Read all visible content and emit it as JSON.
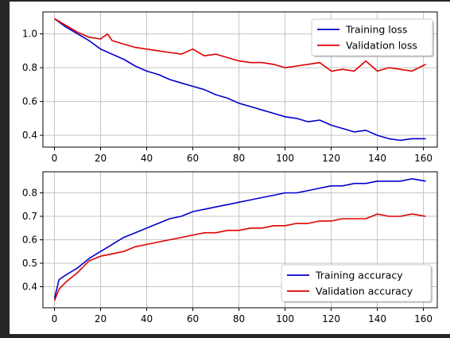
{
  "colors": {
    "blue": "#0000cc",
    "red": "#e00000",
    "grid": "#c4c4c4"
  },
  "chart_data": [
    {
      "type": "line",
      "grid": true,
      "legend_position": "top-right",
      "xlim": [
        -5,
        166
      ],
      "ylim": [
        0.33,
        1.13
      ],
      "xticks": [
        0,
        20,
        40,
        60,
        80,
        100,
        120,
        140,
        160
      ],
      "yticks": [
        0.4,
        0.6,
        0.8,
        1.0
      ],
      "ytick_labels": [
        "0.4",
        "0.6",
        "0.8",
        "1.0"
      ],
      "series": [
        {
          "name": "Training loss",
          "color": "#0000cc",
          "x": [
            0,
            5,
            10,
            15,
            20,
            25,
            30,
            35,
            40,
            45,
            50,
            55,
            60,
            65,
            70,
            75,
            80,
            85,
            90,
            95,
            100,
            105,
            110,
            115,
            120,
            125,
            130,
            135,
            140,
            145,
            150,
            155,
            161
          ],
          "y": [
            1.09,
            1.04,
            1.0,
            0.96,
            0.91,
            0.88,
            0.85,
            0.81,
            0.78,
            0.76,
            0.73,
            0.71,
            0.69,
            0.67,
            0.64,
            0.62,
            0.59,
            0.57,
            0.55,
            0.53,
            0.51,
            0.5,
            0.48,
            0.49,
            0.46,
            0.44,
            0.42,
            0.43,
            0.4,
            0.38,
            0.37,
            0.38,
            0.38
          ]
        },
        {
          "name": "Validation loss",
          "color": "#e00000",
          "x": [
            0,
            5,
            10,
            15,
            20,
            23,
            25,
            30,
            35,
            40,
            45,
            50,
            55,
            60,
            65,
            70,
            75,
            80,
            85,
            90,
            95,
            100,
            105,
            110,
            115,
            120,
            125,
            130,
            135,
            140,
            145,
            150,
            155,
            161
          ],
          "y": [
            1.09,
            1.05,
            1.01,
            0.98,
            0.97,
            1.0,
            0.96,
            0.94,
            0.92,
            0.91,
            0.9,
            0.89,
            0.88,
            0.91,
            0.87,
            0.88,
            0.86,
            0.84,
            0.83,
            0.83,
            0.82,
            0.8,
            0.81,
            0.82,
            0.83,
            0.78,
            0.79,
            0.78,
            0.84,
            0.78,
            0.8,
            0.79,
            0.78,
            0.82
          ]
        }
      ]
    },
    {
      "type": "line",
      "grid": true,
      "legend_position": "bottom-right",
      "xlim": [
        -5,
        166
      ],
      "ylim": [
        0.31,
        0.89
      ],
      "xticks": [
        0,
        20,
        40,
        60,
        80,
        100,
        120,
        140,
        160
      ],
      "yticks": [
        0.4,
        0.5,
        0.6,
        0.7,
        0.8
      ],
      "ytick_labels": [
        "0.4",
        "0.5",
        "0.6",
        "0.7",
        "0.8"
      ],
      "series": [
        {
          "name": "Training accuracy",
          "color": "#0000cc",
          "x": [
            0,
            2,
            5,
            10,
            15,
            20,
            25,
            30,
            35,
            40,
            45,
            50,
            55,
            60,
            65,
            70,
            75,
            80,
            85,
            90,
            95,
            100,
            105,
            110,
            115,
            120,
            125,
            130,
            135,
            140,
            145,
            150,
            155,
            161
          ],
          "y": [
            0.35,
            0.43,
            0.45,
            0.48,
            0.52,
            0.55,
            0.58,
            0.61,
            0.63,
            0.65,
            0.67,
            0.69,
            0.7,
            0.72,
            0.73,
            0.74,
            0.75,
            0.76,
            0.77,
            0.78,
            0.79,
            0.8,
            0.8,
            0.81,
            0.82,
            0.83,
            0.83,
            0.84,
            0.84,
            0.85,
            0.85,
            0.85,
            0.86,
            0.85
          ]
        },
        {
          "name": "Validation accuracy",
          "color": "#e00000",
          "x": [
            0,
            2,
            5,
            10,
            15,
            20,
            25,
            30,
            35,
            40,
            45,
            50,
            55,
            60,
            65,
            70,
            75,
            80,
            85,
            90,
            95,
            100,
            105,
            110,
            115,
            120,
            125,
            130,
            135,
            140,
            145,
            150,
            155,
            161
          ],
          "y": [
            0.34,
            0.39,
            0.42,
            0.46,
            0.51,
            0.53,
            0.54,
            0.55,
            0.57,
            0.58,
            0.59,
            0.6,
            0.61,
            0.62,
            0.63,
            0.63,
            0.64,
            0.64,
            0.65,
            0.65,
            0.66,
            0.66,
            0.67,
            0.67,
            0.68,
            0.68,
            0.69,
            0.69,
            0.69,
            0.71,
            0.7,
            0.7,
            0.71,
            0.7
          ]
        }
      ]
    }
  ]
}
